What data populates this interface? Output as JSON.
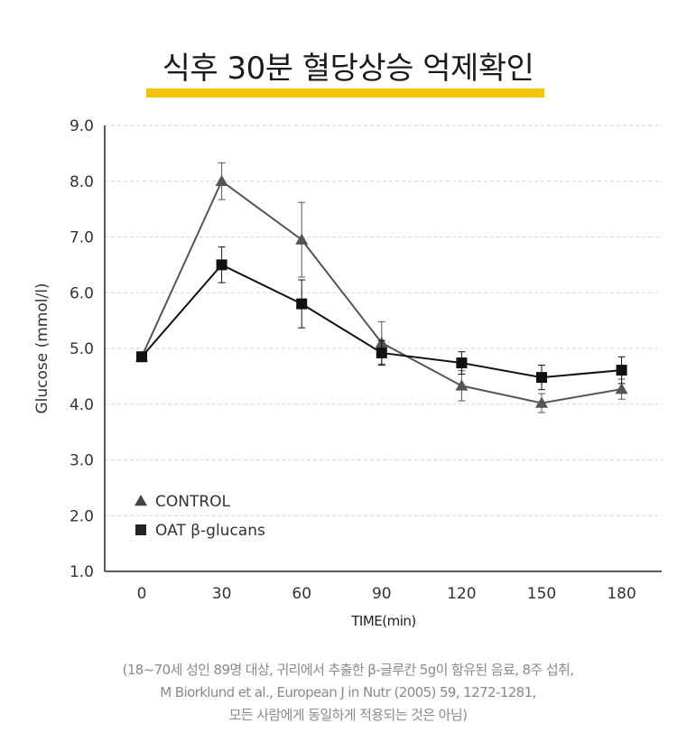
{
  "title": "식후 30분 혈당상승 억제확인",
  "footnote": {
    "line1": "(18~70세 성인 89명 대상, 귀리에서 추출한  β-글루칸 5g이 함유된 음료, 8주 섭취,",
    "line2": "M Biorklund et al., European J in Nutr (2005) 59, 1272-1281,",
    "line3": "모든 사람에게 동일하게 적용되는 것은 아님)"
  },
  "chart_data": {
    "type": "line",
    "xlabel": "TIME(min)",
    "ylabel": "Glucose (mmol/l)",
    "x": [
      0,
      30,
      60,
      90,
      120,
      150,
      180
    ],
    "xticks": [
      "0",
      "30",
      "60",
      "90",
      "120",
      "150",
      "180"
    ],
    "ylim": [
      1.0,
      9.0
    ],
    "yticks": [
      "1.0",
      "2.0",
      "3.0",
      "4.0",
      "5.0",
      "6.0",
      "7.0",
      "8.0",
      "9.0"
    ],
    "grid": "horizontal dashed",
    "legend_position": "bottom-left",
    "series": [
      {
        "name": "CONTROL",
        "marker": "triangle",
        "color": "#555555",
        "values": [
          4.85,
          8.0,
          6.95,
          5.1,
          4.33,
          4.02,
          4.27
        ],
        "error": [
          null,
          0.33,
          0.67,
          0.38,
          0.27,
          0.17,
          0.18
        ]
      },
      {
        "name": "OAT β-glucans",
        "marker": "square",
        "color": "#111111",
        "values": [
          4.85,
          6.5,
          5.8,
          4.92,
          4.74,
          4.48,
          4.61
        ],
        "error": [
          null,
          0.32,
          0.43,
          0.22,
          0.2,
          0.22,
          0.24
        ]
      }
    ]
  }
}
